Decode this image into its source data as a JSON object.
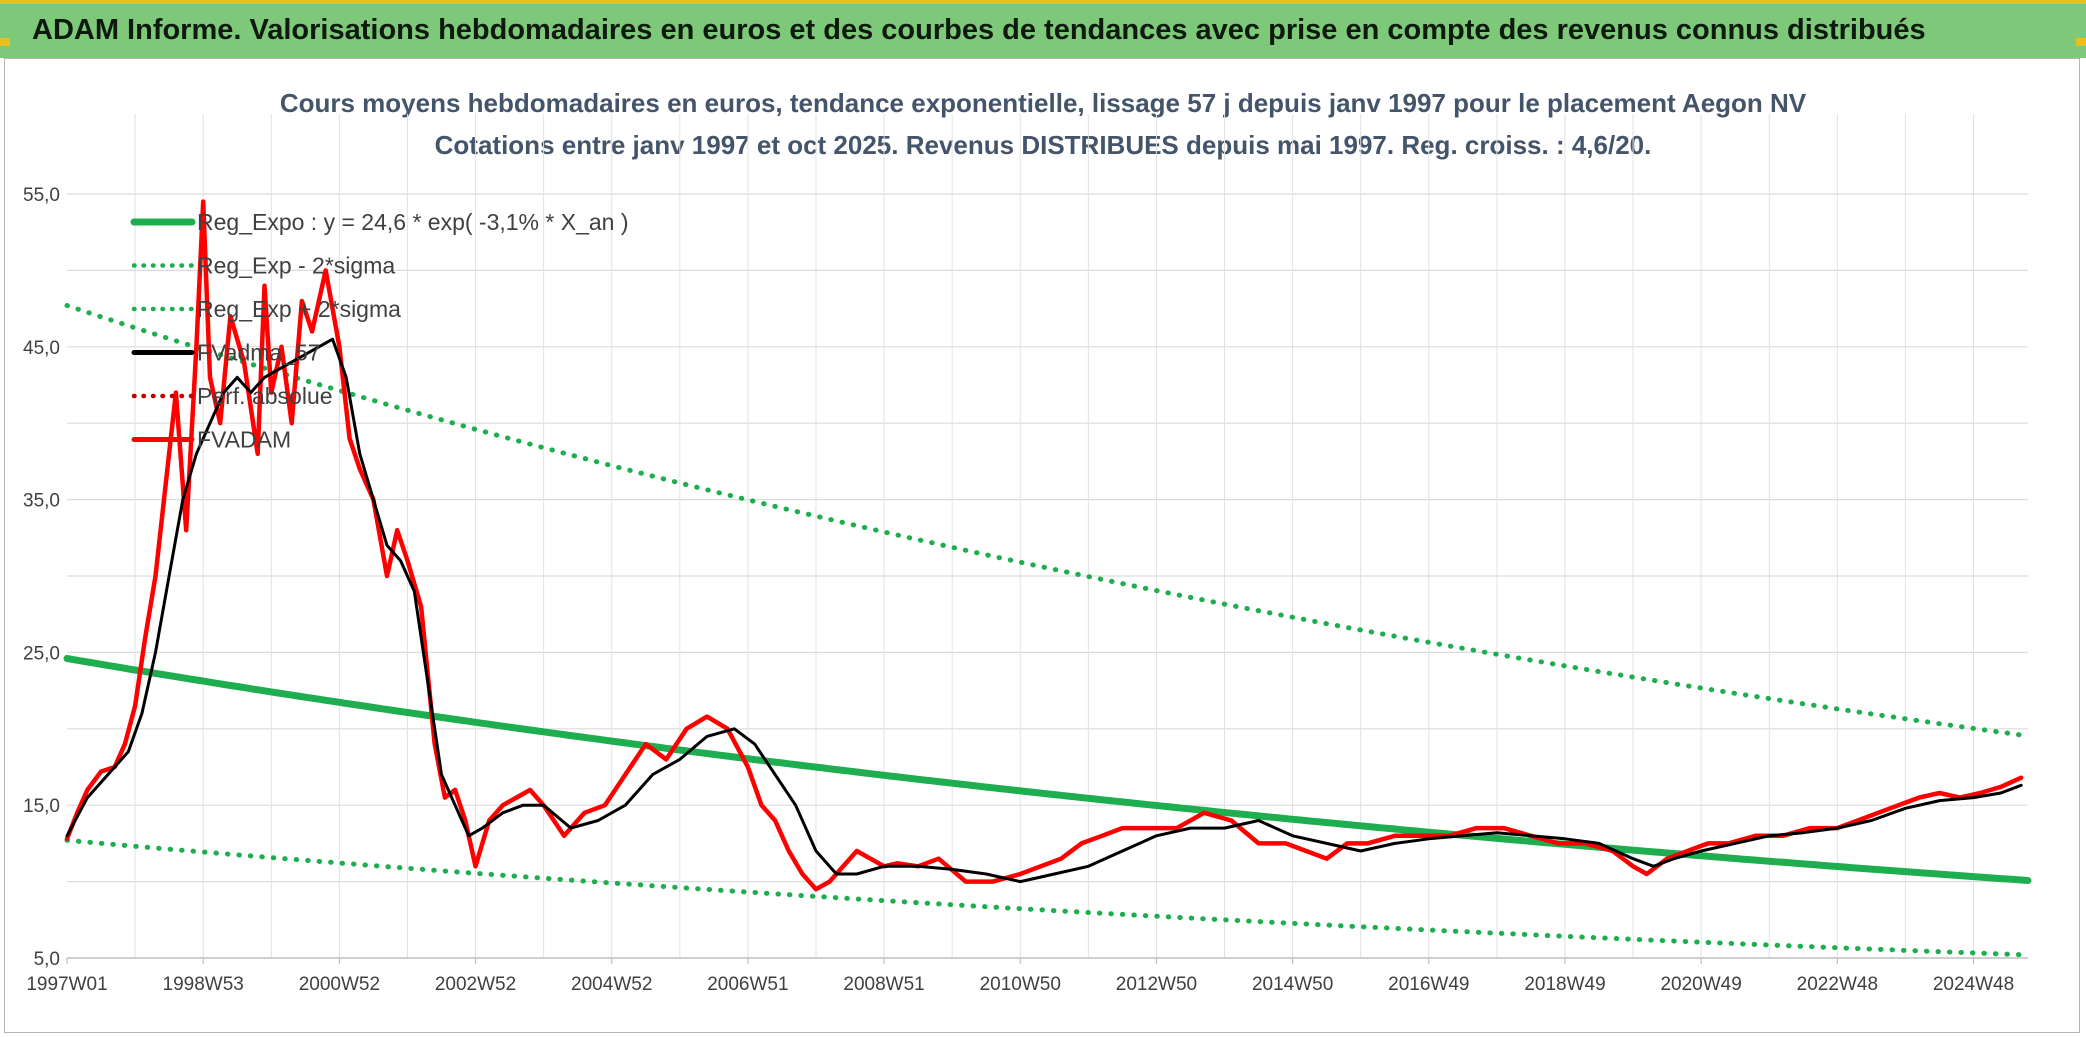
{
  "banner": {
    "title": "ADAM Informe. Valorisations hebdomadaires en euros et des courbes de tendances avec prise en compte des revenus connus distribués"
  },
  "colors": {
    "banner_bg": "#7ec87a",
    "regression": "#1fae4f",
    "smooth": "#000000",
    "price": "#ff0000",
    "title_text": "#44546a"
  },
  "chart_data": {
    "type": "line",
    "title": "Cours moyens hebdomadaires en euros, tendance exponentielle, lissage 57 j depuis janv 1997 pour le placement Aegon NV",
    "subtitle": "Cotations entre janv 1997 et oct 2025. Revenus DISTRIBUES depuis mai 1997. Reg. croiss. : 4,6/20.",
    "xlabel": "",
    "ylabel": "",
    "ylim": [
      5,
      55
    ],
    "xlim": [
      1997.0,
      2025.8
    ],
    "grid": true,
    "legend_position": "top-left",
    "y_ticks": [
      "55,0",
      "45,0",
      "35,0",
      "25,0",
      "15,0",
      "5,0"
    ],
    "y_tick_values": [
      55,
      45,
      35,
      25,
      15,
      5
    ],
    "x_tick_labels": [
      "1997W01",
      "1998W53",
      "2000W52",
      "2002W52",
      "2004W52",
      "2006W51",
      "2008W51",
      "2010W50",
      "2012W50",
      "2014W50",
      "2016W49",
      "2018W49",
      "2020W49",
      "2022W48",
      "2024W48"
    ],
    "x_tick_positions": [
      1997.0,
      1999.0,
      2001.0,
      2003.0,
      2005.0,
      2007.0,
      2009.0,
      2011.0,
      2013.0,
      2015.0,
      2017.0,
      2019.0,
      2021.0,
      2023.0,
      2025.0
    ],
    "legend": [
      {
        "name": "Reg_Expo : y = 24,6 * exp( -3,1% *  X_an )",
        "style": "solid-thick",
        "color": "#1fae4f"
      },
      {
        "name": "Reg_Exp - 2*sigma",
        "style": "dotted",
        "color": "#1fae4f"
      },
      {
        "name": "Reg_Exp + 2*sigma",
        "style": "dotted",
        "color": "#1fae4f"
      },
      {
        "name": "FVadma_57",
        "style": "solid",
        "color": "#000000"
      },
      {
        "name": "Perf. absolue",
        "style": "dotted",
        "color": "#c00000"
      },
      {
        "name": "FVADAM",
        "style": "solid",
        "color": "#ff0000"
      }
    ],
    "series": [
      {
        "name": "Reg_Expo",
        "kind": "exponential",
        "a": 24.6,
        "rate": -0.031,
        "style": "solid-thick"
      },
      {
        "name": "Reg_Exp - 2*sigma",
        "kind": "exponential",
        "a": 12.7,
        "rate": -0.031,
        "style": "dotted"
      },
      {
        "name": "Reg_Exp + 2*sigma",
        "kind": "exponential",
        "a": 47.7,
        "rate": -0.031,
        "style": "dotted"
      },
      {
        "name": "FVADAM",
        "kind": "points",
        "x": [
          1997.0,
          1997.15,
          1997.3,
          1997.5,
          1997.7,
          1997.85,
          1998.0,
          1998.15,
          1998.3,
          1998.45,
          1998.6,
          1998.75,
          1998.9,
          1999.0,
          1999.1,
          1999.25,
          1999.4,
          1999.6,
          1999.8,
          1999.9,
          2000.0,
          2000.15,
          2000.3,
          2000.45,
          2000.6,
          2000.8,
          2001.0,
          2001.15,
          2001.3,
          2001.5,
          2001.7,
          2001.85,
          2002.0,
          2002.2,
          2002.4,
          2002.55,
          2002.7,
          2002.85,
          2003.0,
          2003.2,
          2003.4,
          2003.6,
          2003.8,
          2004.0,
          2004.3,
          2004.6,
          2004.9,
          2005.2,
          2005.5,
          2005.8,
          2006.1,
          2006.4,
          2006.7,
          2007.0,
          2007.2,
          2007.4,
          2007.6,
          2007.8,
          2008.0,
          2008.2,
          2008.4,
          2008.6,
          2008.8,
          2009.0,
          2009.2,
          2009.5,
          2009.8,
          2010.2,
          2010.6,
          2011.0,
          2011.3,
          2011.6,
          2011.9,
          2012.2,
          2012.5,
          2012.9,
          2013.3,
          2013.7,
          2014.1,
          2014.5,
          2014.9,
          2015.2,
          2015.5,
          2015.8,
          2016.1,
          2016.5,
          2016.9,
          2017.3,
          2017.7,
          2018.1,
          2018.5,
          2018.9,
          2019.3,
          2019.7,
          2020.0,
          2020.2,
          2020.5,
          2020.8,
          2021.1,
          2021.4,
          2021.8,
          2022.2,
          2022.6,
          2023.0,
          2023.3,
          2023.6,
          2023.9,
          2024.2,
          2024.5,
          2024.8,
          2025.1,
          2025.4,
          2025.7
        ],
        "values": [
          12.8,
          14.5,
          16.0,
          17.2,
          17.5,
          19.0,
          21.5,
          26.0,
          30.0,
          36.0,
          42.0,
          33.0,
          45.0,
          54.5,
          43.0,
          40.0,
          47.0,
          44.0,
          38.0,
          49.0,
          42.0,
          45.0,
          40.0,
          48.0,
          46.0,
          50.0,
          45.0,
          39.0,
          37.0,
          35.0,
          30.0,
          33.0,
          31.0,
          28.0,
          19.0,
          15.5,
          16.0,
          14.0,
          11.0,
          14.0,
          15.0,
          15.5,
          16.0,
          15.0,
          13.0,
          14.5,
          15.0,
          17.0,
          19.0,
          18.0,
          20.0,
          20.8,
          20.0,
          17.5,
          15.0,
          14.0,
          12.0,
          10.5,
          9.5,
          10.0,
          11.0,
          12.0,
          11.5,
          11.0,
          11.2,
          11.0,
          11.5,
          10.0,
          10.0,
          10.5,
          11.0,
          11.5,
          12.5,
          13.0,
          13.5,
          13.5,
          13.5,
          14.5,
          14.0,
          12.5,
          12.5,
          12.0,
          11.5,
          12.5,
          12.5,
          13.0,
          13.0,
          13.0,
          13.5,
          13.5,
          13.0,
          12.5,
          12.5,
          12.0,
          11.0,
          10.5,
          11.5,
          12.0,
          12.5,
          12.5,
          13.0,
          13.0,
          13.5,
          13.5,
          14.0,
          14.5,
          15.0,
          15.5,
          15.8,
          15.5,
          15.8,
          16.2,
          16.8
        ]
      },
      {
        "name": "FVadma_57",
        "kind": "points",
        "x": [
          1997.0,
          1997.3,
          1997.6,
          1997.9,
          1998.1,
          1998.3,
          1998.5,
          1998.7,
          1998.9,
          1999.1,
          1999.3,
          1999.5,
          1999.7,
          1999.9,
          2000.1,
          2000.3,
          2000.5,
          2000.7,
          2000.9,
          2001.1,
          2001.3,
          2001.5,
          2001.7,
          2001.9,
          2002.1,
          2002.3,
          2002.5,
          2002.7,
          2002.9,
          2003.1,
          2003.4,
          2003.7,
          2004.0,
          2004.4,
          2004.8,
          2005.2,
          2005.6,
          2006.0,
          2006.4,
          2006.8,
          2007.1,
          2007.4,
          2007.7,
          2008.0,
          2008.3,
          2008.6,
          2009.0,
          2009.5,
          2010.0,
          2010.5,
          2011.0,
          2011.5,
          2012.0,
          2012.5,
          2013.0,
          2013.5,
          2014.0,
          2014.5,
          2015.0,
          2015.5,
          2016.0,
          2016.5,
          2017.0,
          2017.5,
          2018.0,
          2018.5,
          2019.0,
          2019.5,
          2020.0,
          2020.3,
          2020.6,
          2021.0,
          2021.5,
          2022.0,
          2022.5,
          2023.0,
          2023.5,
          2024.0,
          2024.5,
          2025.0,
          2025.4,
          2025.7
        ],
        "values": [
          13.0,
          15.5,
          17.0,
          18.5,
          21.0,
          25.0,
          30.0,
          35.0,
          38.0,
          40.0,
          42.0,
          43.0,
          42.0,
          43.0,
          43.5,
          44.0,
          44.5,
          45.0,
          45.5,
          43.0,
          38.0,
          35.0,
          32.0,
          31.0,
          29.0,
          23.0,
          17.0,
          15.0,
          13.0,
          13.5,
          14.5,
          15.0,
          15.0,
          13.5,
          14.0,
          15.0,
          17.0,
          18.0,
          19.5,
          20.0,
          19.0,
          17.0,
          15.0,
          12.0,
          10.5,
          10.5,
          11.0,
          11.0,
          10.8,
          10.5,
          10.0,
          10.5,
          11.0,
          12.0,
          13.0,
          13.5,
          13.5,
          14.0,
          13.0,
          12.5,
          12.0,
          12.5,
          12.8,
          13.0,
          13.2,
          13.0,
          12.8,
          12.5,
          11.5,
          11.0,
          11.5,
          12.0,
          12.5,
          13.0,
          13.2,
          13.5,
          14.0,
          14.8,
          15.3,
          15.5,
          15.8,
          16.3
        ]
      }
    ]
  }
}
